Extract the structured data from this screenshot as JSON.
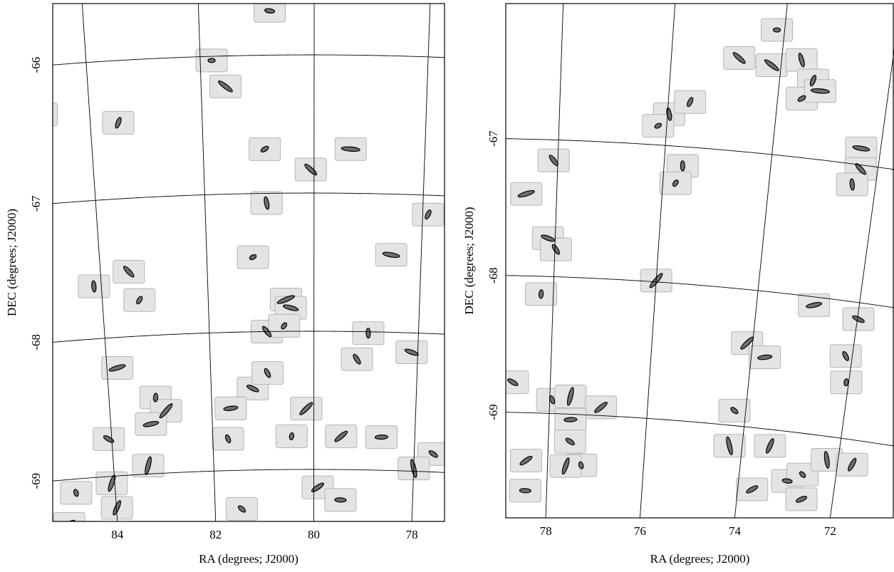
{
  "chart_data": [
    {
      "type": "scatter",
      "xlabel": "RA (degrees; J2000)",
      "ylabel": "DEC (degrees; J2000)",
      "xticks": [
        84,
        82,
        80,
        78
      ],
      "yticks": [
        -66,
        -67,
        -68,
        -69
      ],
      "color": "#6e6e6e",
      "x": [
        81.8,
        81.57,
        84.85,
        83.5,
        80.89,
        79.34,
        80.06,
        80.87,
        77.9,
        81.14,
        78.56,
        83.47,
        84.14,
        83.3,
        80.53,
        80.44,
        80.9,
        78.96,
        80.57,
        83.8,
        78.12,
        79.17,
        83.09,
        82.9,
        83.21,
        81.19,
        80.9,
        80.44,
        80.15,
        81.63,
        84.06,
        81.7,
        83.31,
        79.46,
        78.66,
        77.62,
        84.79,
        84.06,
        79.92,
        79.46,
        81.46,
        78.0,
        83.99,
        84.98,
        80.77
      ],
      "y": [
        -66.03,
        -66.22,
        -66.35,
        -66.45,
        -66.68,
        -66.68,
        -66.83,
        -67.07,
        -67.14,
        -67.46,
        -67.44,
        -67.53,
        -67.62,
        -67.74,
        -67.77,
        -67.83,
        -68.0,
        -68.01,
        -67.96,
        -68.22,
        -68.14,
        -68.2,
        -68.45,
        -68.55,
        -68.64,
        -68.41,
        -68.3,
        -68.76,
        -68.56,
        -68.55,
        -68.73,
        -68.77,
        -68.94,
        -68.76,
        -68.76,
        -68.87,
        -69.1,
        -69.05,
        -69.13,
        -69.22,
        -69.28,
        -68.98,
        -69.23,
        -69.32,
        -65.68
      ]
    },
    {
      "type": "scatter",
      "xlabel": "RA (degrees; J2000)",
      "ylabel": "DEC (degrees; J2000)",
      "xticks": [
        78,
        76,
        74,
        72
      ],
      "yticks": [
        -67,
        -68,
        -69
      ],
      "color": "#6e6e6e",
      "x": [
        74.14,
        74.17,
        73.64,
        73.39,
        73.56,
        73.24,
        74.77,
        75.97,
        75.6,
        76.16,
        72.36,
        72.32,
        72.44,
        71.06,
        71.28,
        71.0,
        78.08,
        75.65,
        75.76,
        78.58,
        78.14,
        77.98,
        78.24,
        76.0,
        72.88,
        71.98,
        72.13,
        72.05,
        74.11,
        73.73,
        78.76,
        77.95,
        77.58,
        76.95,
        77.56,
        77.55,
        77.3,
        77.62,
        78.45,
        78.45,
        74.23,
        74.26,
        73.43,
        73.7,
        72.99,
        72.69,
        72.23,
        71.7,
        72.65
      ],
      "y": [
        -66.09,
        -66.35,
        -66.29,
        -66.43,
        -66.57,
        -66.5,
        -66.32,
        -66.77,
        -66.67,
        -66.86,
        -66.88,
        -67.03,
        -67.15,
        -67.2,
        -67.25,
        -67.14,
        -67.15,
        -67.14,
        -67.27,
        -67.4,
        -67.72,
        -67.8,
        -68.13,
        -67.99,
        -68.06,
        -68.12,
        -68.4,
        -68.59,
        -68.39,
        -68.48,
        -68.78,
        -68.9,
        -68.87,
        -68.94,
        -69.04,
        -69.2,
        -69.37,
        -69.38,
        -69.35,
        -69.57,
        -68.89,
        -69.15,
        -69.12,
        -69.45,
        -69.36,
        -69.3,
        -69.17,
        -69.18,
        -69.48
      ]
    }
  ]
}
